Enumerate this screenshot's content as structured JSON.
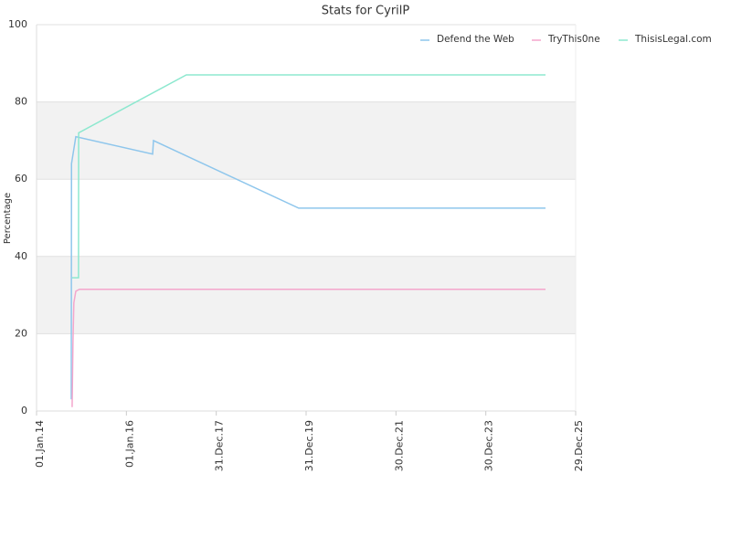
{
  "chart_data": {
    "type": "line",
    "title": "Stats for CyrilP",
    "y_label": "Percentage",
    "xlim": [
      "2014-01-01",
      "2025-12-29"
    ],
    "xticks": [
      {
        "value": "2014-01-01",
        "label": "01.Jan.14"
      },
      {
        "value": "2016-01-01",
        "label": "01.Jan.16"
      },
      {
        "value": "2017-12-31",
        "label": "31.Dec.17"
      },
      {
        "value": "2019-12-31",
        "label": "31.Dec.19"
      },
      {
        "value": "2021-12-30",
        "label": "30.Dec.21"
      },
      {
        "value": "2023-12-30",
        "label": "30.Dec.23"
      },
      {
        "value": "2025-12-29",
        "label": "29.Dec.25"
      }
    ],
    "ylim": [
      0,
      100
    ],
    "yticks": [
      0,
      20,
      40,
      60,
      80,
      100
    ],
    "grid": true,
    "banded_grid": true,
    "legend": "top-right",
    "series": [
      {
        "name": "Defend the Web",
        "color": "#8ec6ec",
        "x": [
          "2014-10-10",
          "2014-10-12",
          "2014-11-16",
          "2016-08-01",
          "2016-08-08",
          "2019-11-01",
          "2025-04-28"
        ],
        "values": [
          3,
          64,
          71,
          66.5,
          70,
          52.5,
          52.5
        ]
      },
      {
        "name": "TryThis0ne",
        "color": "#f4a6cc",
        "x": [
          "2014-10-17",
          "2014-10-24",
          "2014-10-31",
          "2014-11-16",
          "2014-12-16",
          "2025-04-28"
        ],
        "values": [
          1,
          18,
          28,
          31,
          31.5,
          31.5
        ]
      },
      {
        "name": "ThisisLegal.com",
        "color": "#8de8cf",
        "x": [
          "2014-10-17",
          "2014-12-08",
          "2014-12-09",
          "2017-05-02",
          "2025-04-28"
        ],
        "values": [
          34.5,
          34.5,
          72,
          87,
          87
        ]
      }
    ]
  }
}
